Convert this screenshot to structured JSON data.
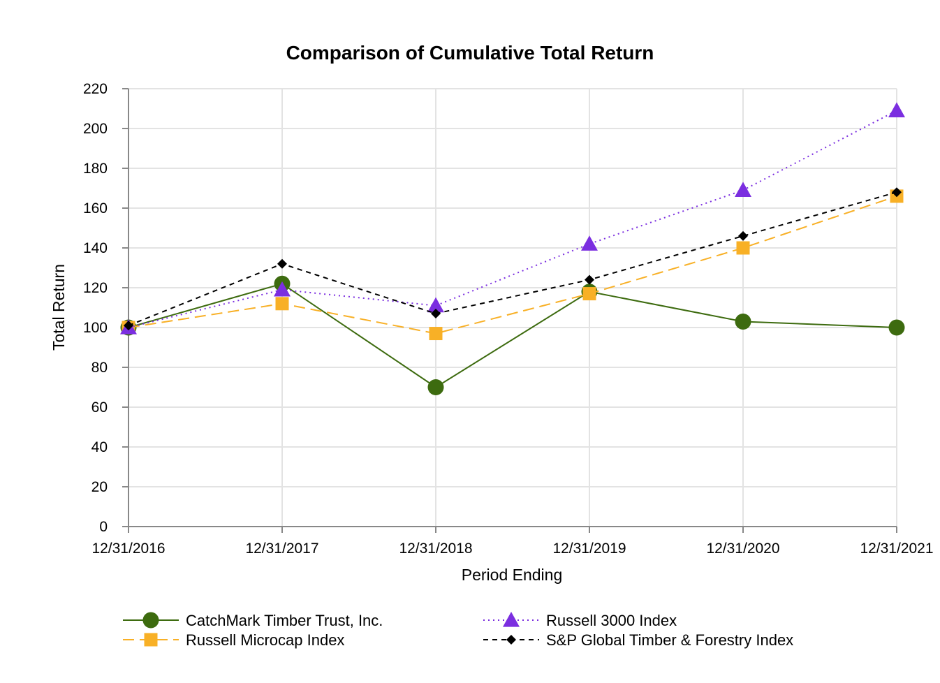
{
  "chart_data": {
    "type": "line",
    "title": "Comparison of Cumulative Total Return",
    "xlabel": "Period Ending",
    "ylabel": "Total Return",
    "ylim": [
      0,
      220
    ],
    "yticks": [
      0,
      20,
      40,
      60,
      80,
      100,
      120,
      140,
      160,
      180,
      200,
      220
    ],
    "categories": [
      "12/31/2016",
      "12/31/2017",
      "12/31/2018",
      "12/31/2019",
      "12/31/2020",
      "12/31/2021"
    ],
    "grid": true,
    "legend_position": "bottom",
    "series": [
      {
        "name": "CatchMark Timber Trust, Inc.",
        "values": [
          100,
          122,
          70,
          118,
          103,
          100
        ],
        "color": "#3d6b0f",
        "marker": "circle",
        "dash": "solid"
      },
      {
        "name": "Russell 3000 Index",
        "values": [
          100,
          119,
          111,
          142,
          169,
          209
        ],
        "color": "#7b2ee0",
        "marker": "triangle",
        "dash": "dotted"
      },
      {
        "name": "Russell Microcap Index",
        "values": [
          100,
          112,
          97,
          117,
          140,
          166
        ],
        "color": "#f8b026",
        "marker": "square",
        "dash": "dashed-long"
      },
      {
        "name": "S&P Global Timber & Forestry Index",
        "values": [
          101,
          132,
          107,
          124,
          146,
          168
        ],
        "color": "#000000",
        "marker": "diamond",
        "dash": "dashed"
      }
    ]
  }
}
